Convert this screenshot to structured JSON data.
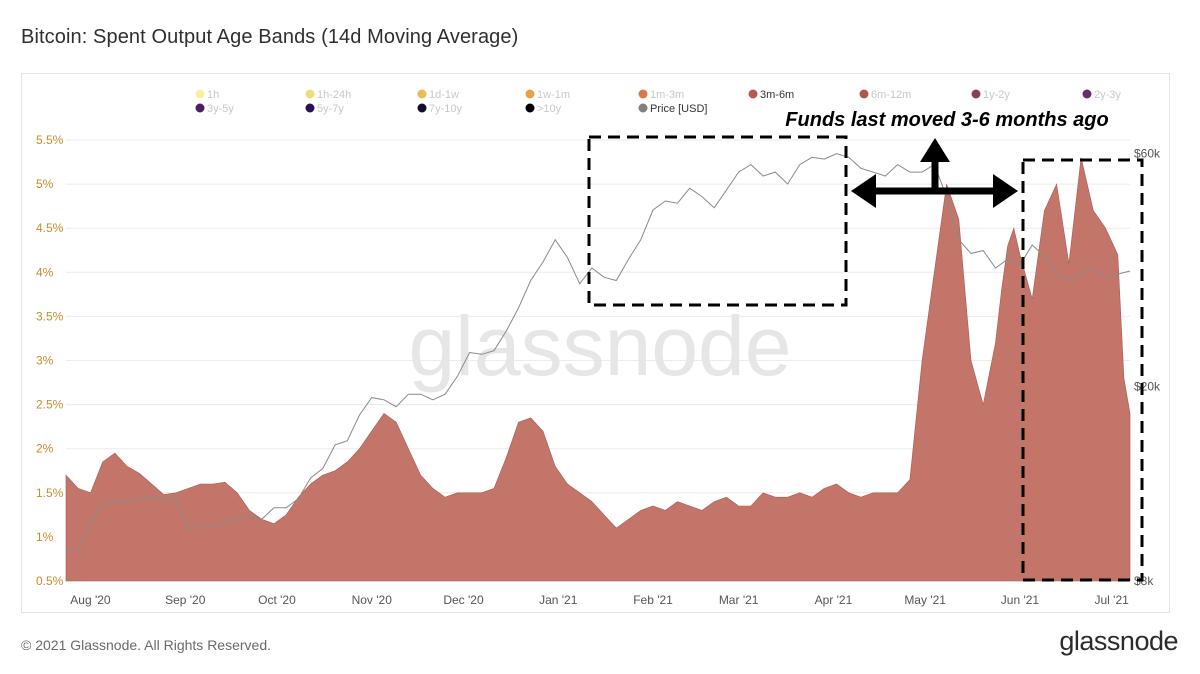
{
  "page": {
    "title": "Bitcoin: Spent Output Age Bands (14d Moving Average)",
    "copyright": "© 2021 Glassnode. All Rights Reserved.",
    "logo": "glassnode",
    "watermark": "glassnode"
  },
  "annotation": {
    "text": "Funds last moved 3-6 months ago"
  },
  "chart_data": {
    "type": "area",
    "title": "Bitcoin: Spent Output Age Bands (14d Moving Average)",
    "legend": {
      "placement": "top",
      "items": [
        {
          "label": "1h",
          "color": "#f7f0a0",
          "active": false
        },
        {
          "label": "1h-24h",
          "color": "#f2dc7a",
          "active": false
        },
        {
          "label": "1d-1w",
          "color": "#edbd55",
          "active": false
        },
        {
          "label": "1w-1m",
          "color": "#e6a244",
          "active": false
        },
        {
          "label": "1m-3m",
          "color": "#d9794a",
          "active": false
        },
        {
          "label": "3m-6m",
          "color": "#b8594f",
          "active": true
        },
        {
          "label": "6m-12m",
          "color": "#b0564f",
          "active": false
        },
        {
          "label": "1y-2y",
          "color": "#8c3d5c",
          "active": false
        },
        {
          "label": "2y-3y",
          "color": "#6d2a6b",
          "active": false
        },
        {
          "label": "3y-5y",
          "color": "#4a1e68",
          "active": false
        },
        {
          "label": "5y-7y",
          "color": "#2a115a",
          "active": false
        },
        {
          "label": "7y-10y",
          "color": "#140a2a",
          "active": false
        },
        {
          "label": ">10y",
          "color": "#000000",
          "active": false
        },
        {
          "label": "Price [USD]",
          "color": "#808080",
          "active": true
        }
      ]
    },
    "x_axis": {
      "ticks": [
        "Aug '20",
        "Sep '20",
        "Oct '20",
        "Nov '20",
        "Dec '20",
        "Jan '21",
        "Feb '21",
        "Mar '21",
        "Apr '21",
        "May '21",
        "Jun '21",
        "Jul '21"
      ],
      "tick_days": [
        8,
        39,
        69,
        100,
        130,
        161,
        192,
        220,
        251,
        281,
        312,
        342
      ]
    },
    "y_axis_left": {
      "range": [
        0.5,
        5.5
      ],
      "ticks": [
        "0.5%",
        "1%",
        "1.5%",
        "2%",
        "2.5%",
        "3%",
        "3.5%",
        "4%",
        "4.5%",
        "5%",
        "5.5%"
      ],
      "tick_values": [
        0.5,
        1,
        1.5,
        2,
        2.5,
        3,
        3.5,
        4,
        4.5,
        5,
        5.5
      ],
      "color": "#c98a2c"
    },
    "y_axis_right": {
      "scale": "log",
      "range": [
        8000,
        64000
      ],
      "ticks": [
        "$8k",
        "$20k",
        "$60k"
      ],
      "tick_values": [
        8000,
        20000,
        60000
      ]
    },
    "grid": true,
    "series": [
      {
        "name": "3m-6m",
        "type": "area",
        "color": "#c4756a",
        "x": [
          0,
          4,
          8,
          12,
          16,
          20,
          24,
          28,
          32,
          36,
          40,
          44,
          48,
          52,
          56,
          60,
          64,
          68,
          72,
          76,
          80,
          84,
          88,
          92,
          96,
          100,
          104,
          108,
          112,
          116,
          120,
          124,
          128,
          132,
          136,
          140,
          144,
          148,
          152,
          156,
          160,
          164,
          168,
          172,
          176,
          180,
          184,
          188,
          192,
          196,
          200,
          204,
          208,
          212,
          216,
          220,
          224,
          228,
          232,
          236,
          240,
          244,
          248,
          252,
          256,
          260,
          264,
          268,
          272,
          276,
          280,
          284,
          288,
          292,
          296,
          300,
          304,
          306,
          308,
          310,
          312,
          316,
          320,
          324,
          328,
          332,
          336,
          340,
          344,
          346,
          348
        ],
        "values": [
          1.7,
          1.55,
          1.5,
          1.85,
          1.95,
          1.8,
          1.72,
          1.6,
          1.48,
          1.5,
          1.55,
          1.6,
          1.6,
          1.62,
          1.5,
          1.3,
          1.2,
          1.15,
          1.25,
          1.45,
          1.6,
          1.7,
          1.75,
          1.85,
          2.0,
          2.2,
          2.4,
          2.3,
          2.0,
          1.7,
          1.55,
          1.45,
          1.5,
          1.5,
          1.5,
          1.55,
          1.9,
          2.3,
          2.35,
          2.2,
          1.8,
          1.6,
          1.5,
          1.4,
          1.25,
          1.1,
          1.2,
          1.3,
          1.35,
          1.3,
          1.4,
          1.35,
          1.3,
          1.4,
          1.45,
          1.35,
          1.35,
          1.5,
          1.45,
          1.45,
          1.5,
          1.45,
          1.55,
          1.6,
          1.5,
          1.45,
          1.5,
          1.5,
          1.5,
          1.65,
          3.0,
          4.0,
          5.0,
          4.6,
          3.0,
          2.5,
          3.2,
          3.8,
          4.3,
          4.5,
          4.2,
          3.7,
          4.7,
          5.0,
          4.1,
          5.3,
          4.7,
          4.5,
          4.2,
          2.8,
          2.4
        ]
      },
      {
        "name": "Price [USD]",
        "type": "line",
        "color": "#8a8a8a",
        "x": [
          0,
          4,
          8,
          12,
          16,
          20,
          24,
          28,
          32,
          36,
          40,
          44,
          48,
          52,
          56,
          60,
          64,
          68,
          72,
          76,
          80,
          84,
          88,
          92,
          96,
          100,
          104,
          108,
          112,
          116,
          120,
          124,
          128,
          132,
          136,
          140,
          144,
          148,
          152,
          156,
          160,
          164,
          168,
          172,
          176,
          180,
          184,
          188,
          192,
          196,
          200,
          204,
          208,
          212,
          216,
          220,
          224,
          228,
          232,
          236,
          240,
          244,
          248,
          252,
          256,
          260,
          264,
          268,
          272,
          276,
          280,
          284,
          288,
          292,
          296,
          300,
          304,
          308,
          312,
          316,
          320,
          324,
          328,
          332,
          336,
          340,
          344,
          348
        ],
        "values": [
          9200,
          9300,
          10500,
          11400,
          11700,
          11600,
          11800,
          11900,
          11700,
          11800,
          10200,
          10500,
          10300,
          10500,
          10700,
          10900,
          10700,
          11300,
          11300,
          11800,
          13000,
          13600,
          15200,
          15500,
          17500,
          19000,
          18800,
          18200,
          19300,
          19300,
          18800,
          19300,
          21000,
          23500,
          23300,
          23700,
          26000,
          29000,
          33000,
          36000,
          40000,
          36800,
          32500,
          35000,
          33500,
          33000,
          36500,
          40000,
          46000,
          48000,
          47500,
          51000,
          49000,
          46500,
          50500,
          55000,
          57000,
          54000,
          55000,
          52000,
          57000,
          59000,
          58500,
          60000,
          59000,
          56000,
          55000,
          54000,
          57000,
          55000,
          55000,
          57000,
          49000,
          40000,
          37500,
          38000,
          35000,
          36500,
          35500,
          39000,
          37000,
          34000,
          33000,
          34000,
          35000,
          33500,
          34000,
          34500
        ]
      }
    ]
  }
}
